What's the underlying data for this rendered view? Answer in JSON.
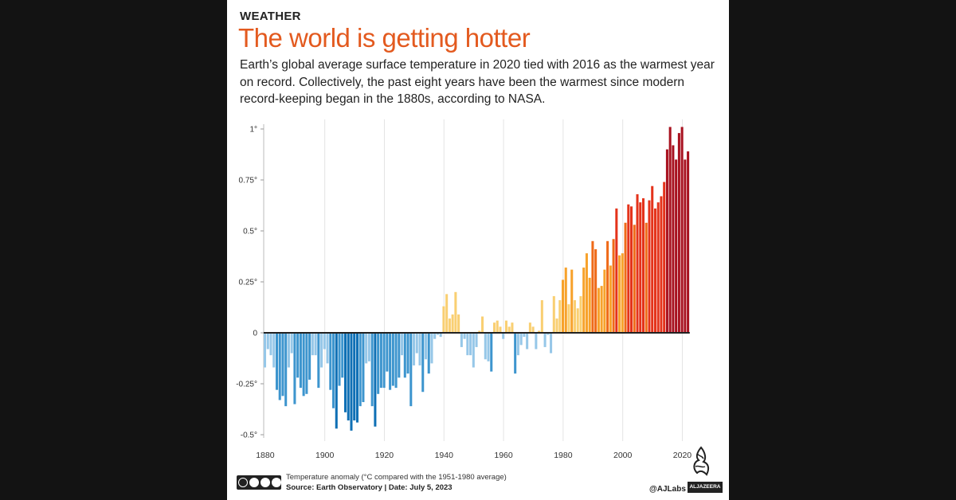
{
  "header": {
    "kicker": "WEATHER",
    "headline": "The world is getting hotter",
    "dek": "Earth’s global average surface temperature in 2020 tied with 2016 as the warmest year on record. Collectively, the past eight years have been the warmest since modern record-keeping began in the 1880s, according to NASA."
  },
  "footer": {
    "note": "Temperature anomaly (°C compared with the 1951-1980 average)",
    "source": "Source: Earth Observatory  |  Date: July 5, 2023",
    "handle": "@AJLabs",
    "logo_text": "ALJAZEERA",
    "license_icon": "cc-by-nc-sa-icon"
  },
  "colors": {
    "cold_dark": "#0f70b5",
    "cold_mid": "#3d95ce",
    "cold_light": "#96c7e8",
    "warm_light": "#f9cf72",
    "warm_mid": "#f7a22b",
    "warm_orange": "#ef6a18",
    "warm_red": "#e4331b",
    "warm_dark": "#a8111f",
    "headline": "#e35a1f"
  },
  "chart_data": {
    "type": "bar",
    "x_tick_labels": [
      "1880",
      "1900",
      "1920",
      "1940",
      "1960",
      "1980",
      "2000",
      "2020"
    ],
    "y_tick_labels": [
      "1°",
      "0.75°",
      "0.5°",
      "0.25°",
      "0",
      "-0.25°",
      "-0.5°"
    ],
    "y_ticks": [
      1,
      0.75,
      0.5,
      0.25,
      0,
      -0.25,
      -0.5
    ],
    "ylim": [
      -0.5,
      1.0
    ],
    "grid": true,
    "series": [
      {
        "x": [
          1880,
          1881,
          1882,
          1883,
          1884,
          1885,
          1886,
          1887,
          1888,
          1889,
          1890,
          1891,
          1892,
          1893,
          1894,
          1895,
          1896,
          1897,
          1898,
          1899,
          1900,
          1901,
          1902,
          1903,
          1904,
          1905,
          1906,
          1907,
          1908,
          1909,
          1910,
          1911,
          1912,
          1913,
          1914,
          1915,
          1916,
          1917,
          1918,
          1919,
          1920,
          1921,
          1922,
          1923,
          1924,
          1925,
          1926,
          1927,
          1928,
          1929,
          1930,
          1931,
          1932,
          1933,
          1934,
          1935,
          1936,
          1937,
          1938,
          1939,
          1940,
          1941,
          1942,
          1943,
          1944,
          1945,
          1946,
          1947,
          1948,
          1949,
          1950,
          1951,
          1952,
          1953,
          1954,
          1955,
          1956,
          1957,
          1958,
          1959,
          1960,
          1961,
          1962,
          1963,
          1964,
          1965,
          1966,
          1967,
          1968,
          1969,
          1970,
          1971,
          1972,
          1973,
          1974,
          1975,
          1976,
          1977,
          1978,
          1979,
          1980,
          1981,
          1982,
          1983,
          1984,
          1985,
          1986,
          1987,
          1988,
          1989,
          1990,
          1991,
          1992,
          1993,
          1994,
          1995,
          1996,
          1997,
          1998,
          1999,
          2000,
          2001,
          2002,
          2003,
          2004,
          2005,
          2006,
          2007,
          2008,
          2009,
          2010,
          2011,
          2012,
          2013,
          2014,
          2015,
          2016,
          2017,
          2018,
          2019,
          2020,
          2021,
          2022
        ],
        "values": [
          -0.17,
          -0.08,
          -0.11,
          -0.17,
          -0.28,
          -0.33,
          -0.31,
          -0.36,
          -0.17,
          -0.1,
          -0.35,
          -0.22,
          -0.27,
          -0.31,
          -0.3,
          -0.23,
          -0.11,
          -0.11,
          -0.27,
          -0.17,
          -0.08,
          -0.15,
          -0.28,
          -0.37,
          -0.47,
          -0.26,
          -0.22,
          -0.39,
          -0.43,
          -0.48,
          -0.43,
          -0.44,
          -0.36,
          -0.34,
          -0.15,
          -0.14,
          -0.36,
          -0.46,
          -0.3,
          -0.27,
          -0.27,
          -0.19,
          -0.28,
          -0.26,
          -0.27,
          -0.22,
          -0.11,
          -0.22,
          -0.2,
          -0.36,
          -0.16,
          -0.1,
          -0.16,
          -0.29,
          -0.13,
          -0.2,
          -0.15,
          -0.03,
          -0.01,
          -0.02,
          0.13,
          0.19,
          0.07,
          0.09,
          0.2,
          0.09,
          -0.07,
          -0.03,
          -0.11,
          -0.11,
          -0.17,
          -0.07,
          0.01,
          0.08,
          -0.13,
          -0.14,
          -0.19,
          0.05,
          0.06,
          0.03,
          -0.03,
          0.06,
          0.03,
          0.05,
          -0.2,
          -0.11,
          -0.06,
          -0.02,
          -0.08,
          0.05,
          0.03,
          -0.08,
          0.01,
          0.16,
          -0.07,
          -0.01,
          -0.1,
          0.18,
          0.07,
          0.16,
          0.26,
          0.32,
          0.14,
          0.31,
          0.16,
          0.12,
          0.18,
          0.32,
          0.39,
          0.27,
          0.45,
          0.41,
          0.22,
          0.23,
          0.31,
          0.45,
          0.33,
          0.46,
          0.61,
          0.38,
          0.39,
          0.54,
          0.63,
          0.62,
          0.53,
          0.68,
          0.64,
          0.66,
          0.54,
          0.65,
          0.72,
          0.61,
          0.64,
          0.67,
          0.74,
          0.9,
          1.01,
          0.92,
          0.85,
          0.98,
          1.01,
          0.85,
          0.89
        ]
      }
    ]
  }
}
